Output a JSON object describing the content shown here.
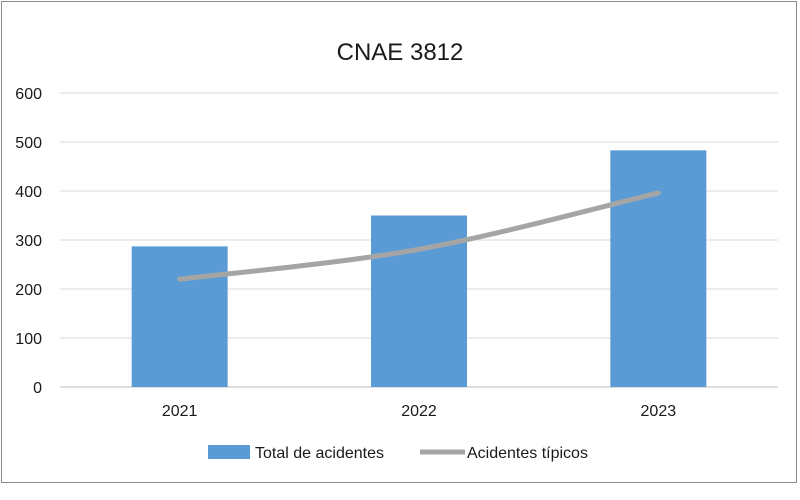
{
  "chart_data": {
    "type": "bar",
    "title": "CNAE 3812",
    "categories": [
      "2021",
      "2022",
      "2023"
    ],
    "ylim": [
      0,
      600
    ],
    "yticks": [
      0,
      100,
      200,
      300,
      400,
      500,
      600
    ],
    "grid": true,
    "legend_position": "bottom",
    "series": [
      {
        "name": "Total de acidentes",
        "kind": "bar",
        "color": "#5b9bd5",
        "values": [
          287,
          350,
          483
        ]
      },
      {
        "name": "Acidentes típicos",
        "kind": "line",
        "color": "#a5a5a5",
        "values": [
          220,
          281,
          396
        ]
      }
    ]
  }
}
